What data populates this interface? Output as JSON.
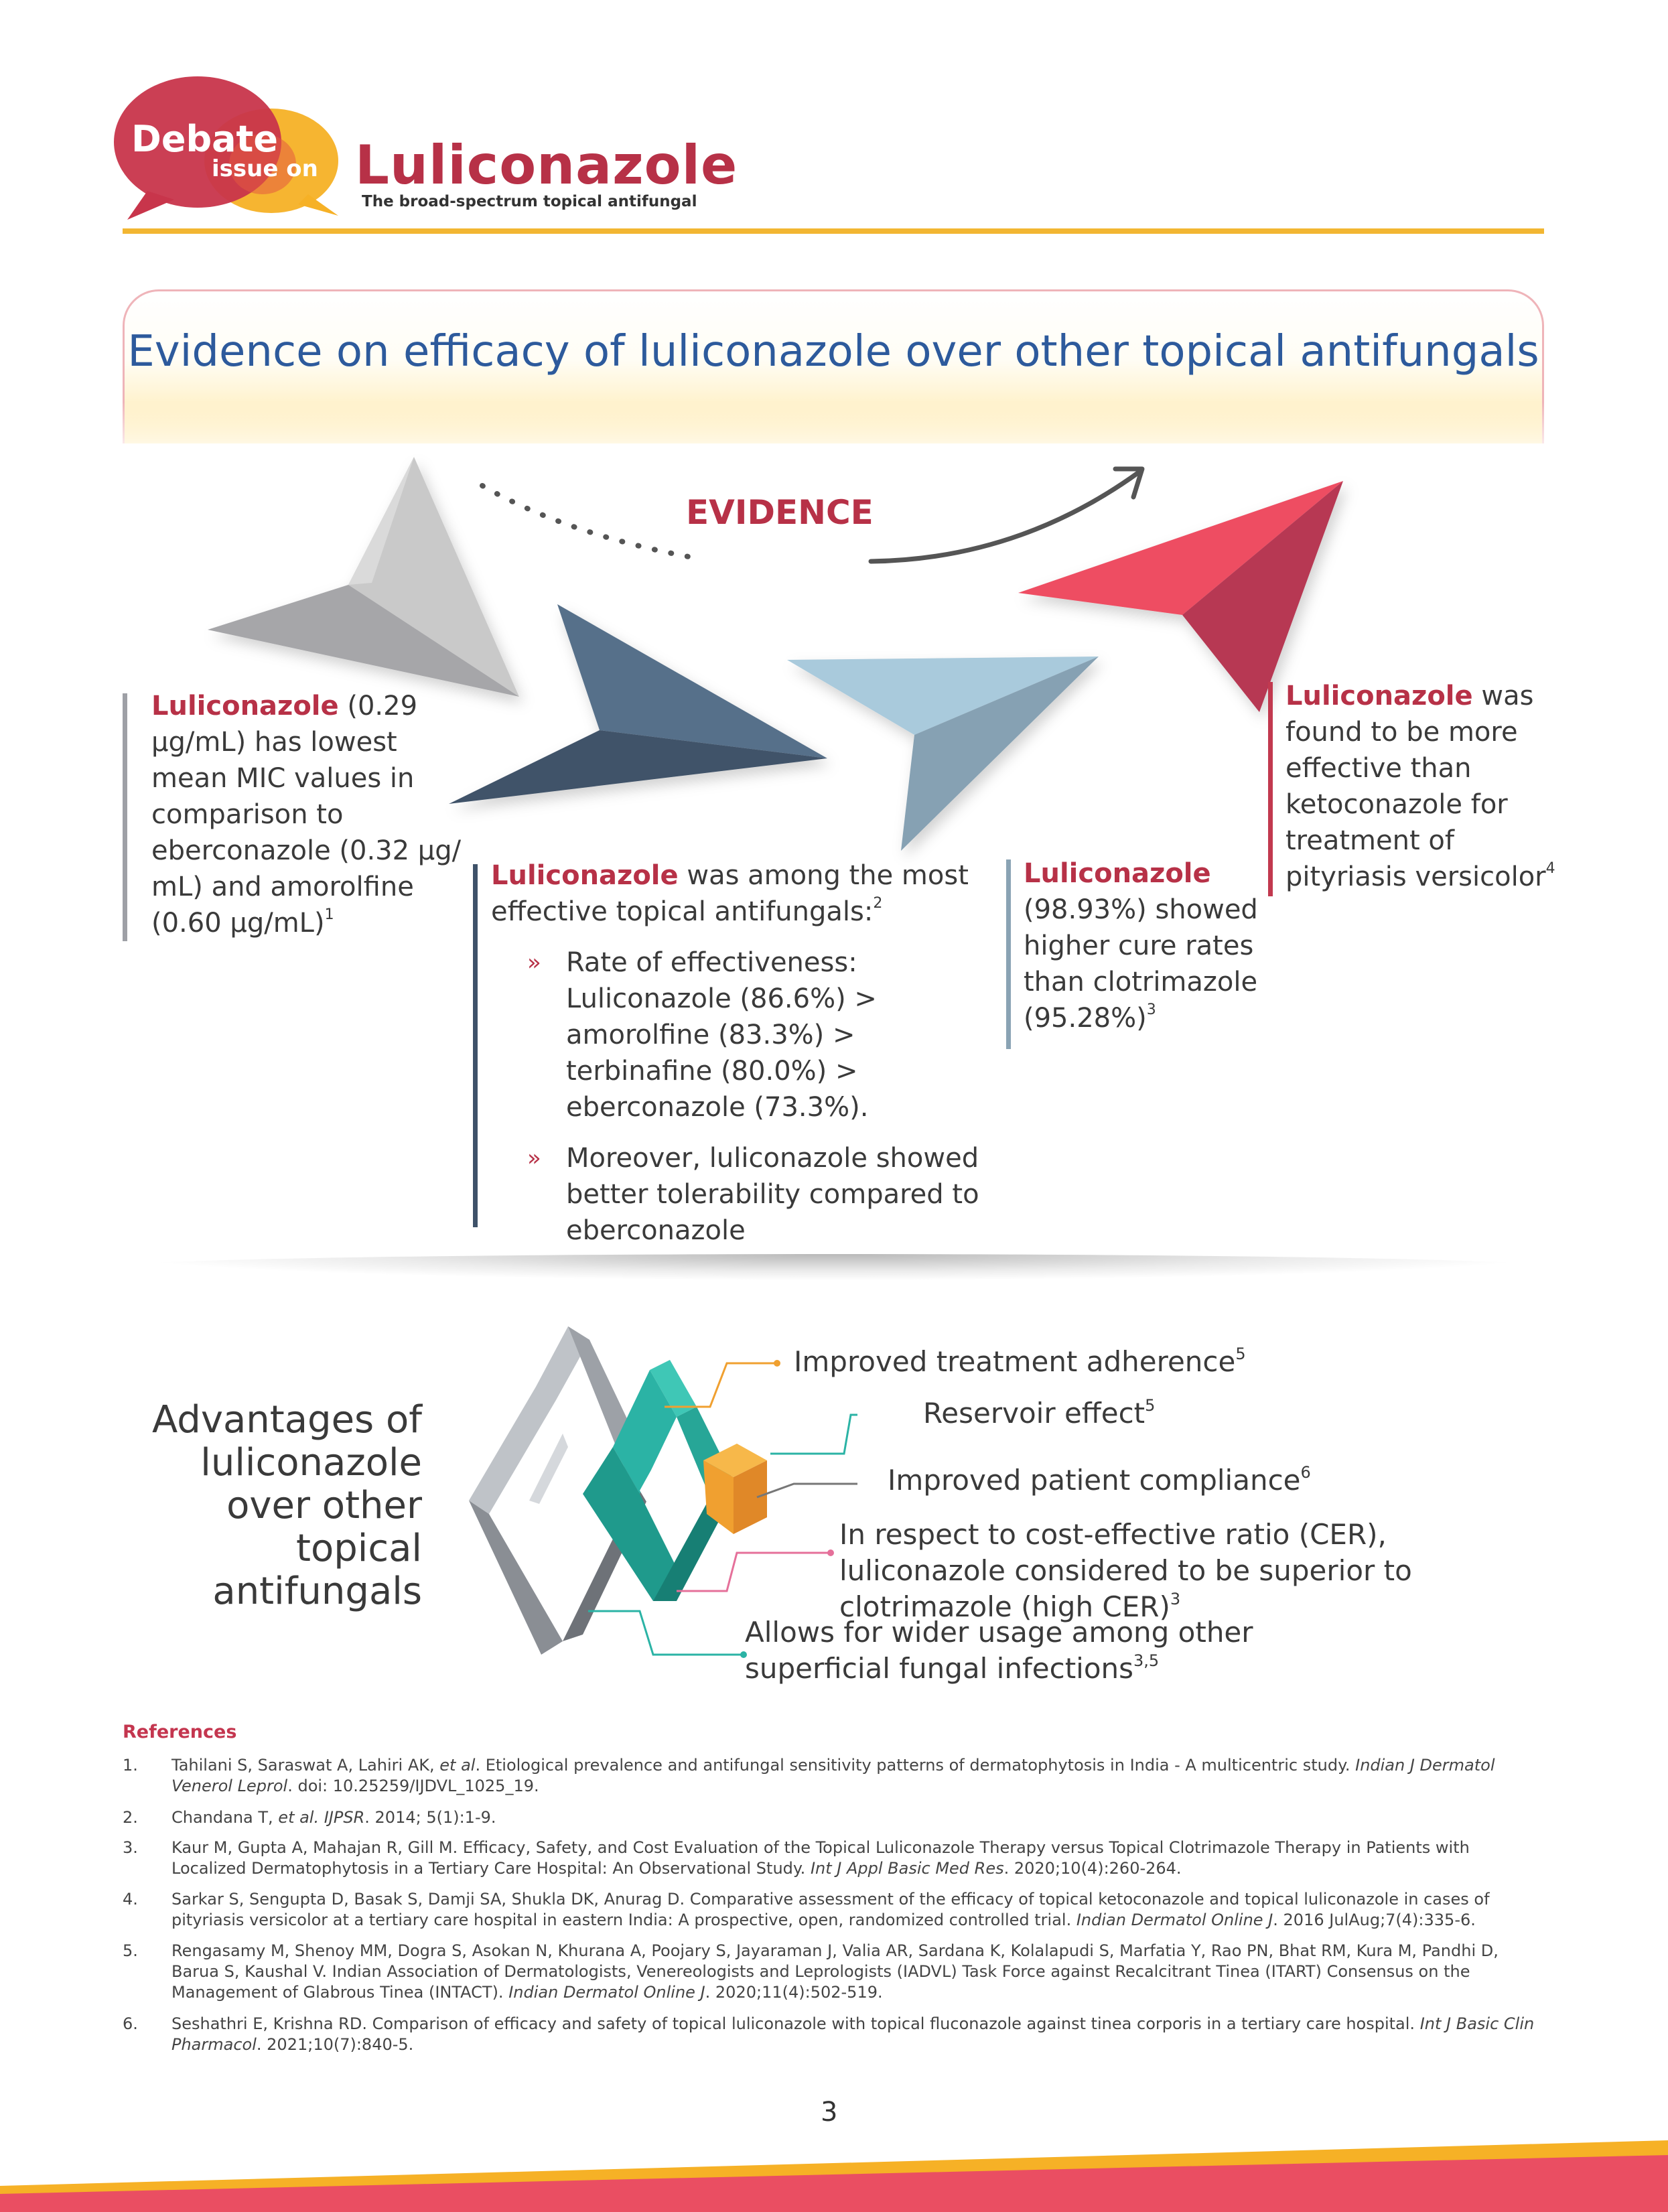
{
  "header": {
    "logo_word1": "Debate",
    "logo_word2": "issue on",
    "title": "Luliconazole",
    "subtitle": "The broad-spectrum topical antifungal"
  },
  "section": {
    "title": "Evidence on efficacy of luliconazole over other topical antifungals",
    "evidence_label": "EVIDENCE"
  },
  "evidence": {
    "block1": {
      "drug": "Luliconazole",
      "text": " (0.29 µg/mL) has lowest mean MIC values in comparison to eberconazole (0.32 µg/ mL) and amorolfine (0.60 µg/mL)",
      "ref": "1"
    },
    "block2": {
      "drug": "Luliconazole",
      "text": " was among the most effective topical antifungals:",
      "ref": "2",
      "bullet_mark": "»",
      "bullets": [
        "Rate of effectiveness: Luliconazole (86.6%) > amorolfine (83.3%) > terbinafine (80.0%) > eberconazole (73.3%).",
        "Moreover, luliconazole showed better tolerability compared to eberconazole"
      ]
    },
    "block3": {
      "drug": "Luliconazole",
      "text": " (98.93%) showed higher cure rates than clotrimazole (95.28%)",
      "ref": "3"
    },
    "block4": {
      "drug": "Luliconazole",
      "text": " was found to be more effective than ketoconazole for treatment of pityriasis versicolor",
      "ref": "4"
    }
  },
  "advantages": {
    "heading": "Advantages of luliconazole over other topical antifungals",
    "items": [
      {
        "text": "Improved treatment adherence",
        "ref": "5"
      },
      {
        "text": "Reservoir effect",
        "ref": "5"
      },
      {
        "text": "Improved patient compliance",
        "ref": "6"
      },
      {
        "text": "In respect to cost-effective ratio (CER), luliconazole considered to be superior to clotrimazole (high CER)",
        "ref": "3"
      },
      {
        "text": "Allows for wider usage among other superficial fungal infections",
        "ref": "3,5"
      }
    ]
  },
  "references": {
    "title": "References",
    "items": [
      {
        "num": "1.",
        "parts": [
          "Tahilani S, Saraswat A, Lahiri AK, ",
          "et al",
          ". Etiological prevalence and antifungal sensitivity patterns of dermatophytosis in India - A multicentric study. ",
          "Indian J Dermatol Venerol Leprol",
          ". doi: 10.25259/IJDVL_1025_19."
        ]
      },
      {
        "num": "2.",
        "parts": [
          "Chandana T, ",
          "et al. IJPSR",
          ". 2014; 5(1):1-9."
        ]
      },
      {
        "num": "3.",
        "parts": [
          "Kaur M, Gupta A, Mahajan R, Gill M. Efficacy, Safety, and Cost Evaluation of the Topical Luliconazole Therapy versus Topical Clotrimazole Therapy in Patients with Localized Dermatophytosis in a Tertiary Care Hospital: An Observational Study. ",
          "Int J Appl Basic Med Res",
          ". 2020;10(4):260-264."
        ]
      },
      {
        "num": "4.",
        "parts": [
          "Sarkar S, Sengupta D, Basak S, Damji SA, Shukla DK, Anurag D. Comparative assessment of the efficacy of topical ketoconazole and topical luliconazole in cases of pityriasis versicolor at a tertiary care hospital in eastern India: A prospective, open, randomized controlled trial. ",
          "Indian Dermatol Online J",
          ". 2016 JulAug;7(4):335-6."
        ]
      },
      {
        "num": "5.",
        "parts": [
          "Rengasamy M, Shenoy MM, Dogra S, Asokan N, Khurana A, Poojary S, Jayaraman J, Valia AR, Sardana K, Kolalapudi S, Marfatia Y, Rao PN, Bhat RM, Kura M, Pandhi D, Barua S, Kaushal V. Indian Association of Dermatologists, Venereologists and Leprologists (IADVL) Task Force against Recalcitrant Tinea (ITART) Consensus on the Management of Glabrous Tinea (INTACT). ",
          "Indian Dermatol Online J",
          ". 2020;11(4):502-519."
        ]
      },
      {
        "num": "6.",
        "parts": [
          "Seshathri E, Krishna RD. Comparison of efficacy and safety of topical luliconazole with topical fluconazole against tinea corporis in a tertiary care hospital. ",
          "Int J Basic Clin Pharmacol",
          ". 2021;10(7):840-5."
        ]
      }
    ]
  },
  "page_number": "3",
  "colors": {
    "brand_red": "#b73147",
    "heading_blue": "#2d5a9c",
    "accent_yellow": "#f2b632",
    "dark_slate": "#3f5269",
    "light_slate": "#8aa3b4",
    "teal": "#2bb3a5",
    "orange": "#f0a030",
    "pink": "#e5546a"
  }
}
